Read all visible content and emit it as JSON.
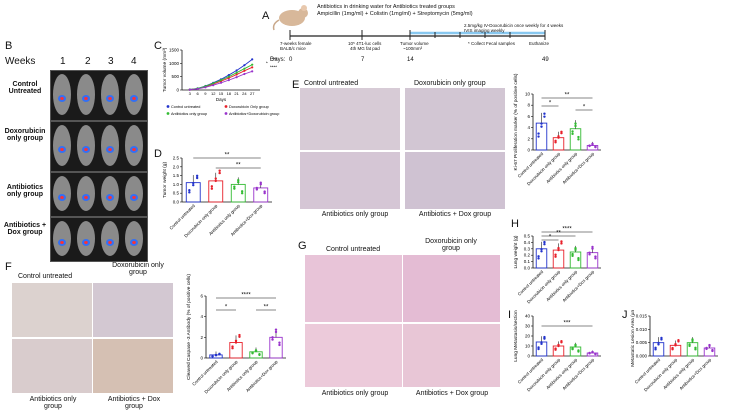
{
  "panels": {
    "A": "A",
    "B": "B",
    "C": "C",
    "D": "D",
    "E": "E",
    "F": "F",
    "G": "G",
    "H": "H",
    "I": "I",
    "J": "J"
  },
  "timeline": {
    "mouse_label_1": "7-weeks female",
    "mouse_label_2": "BALB/c mice",
    "abx_line1": "Antibiotics in drinking water for Antibiotics treated groups",
    "abx_line2": "Ampicillin (1mg/ml) + Colistin (1mg/ml) + Streptomycin (5mg/ml)",
    "cells_1": "10⁵ 4T1-luc cells",
    "cells_2": "4th MG fat pad",
    "tumor_1": "Tumor volume",
    "tumor_2": "~100mm³",
    "dox_1": "2.5mg/kg IV-Doxorubicin once weekly for 4 weeks",
    "dox_2": "IVIS imaging weekly",
    "fecal": "* Collect Fecal samples",
    "euth": "Euthanize",
    "days_label": "Days:",
    "days": [
      "0",
      "7",
      "14",
      "49"
    ]
  },
  "B": {
    "weeks_label": "Weeks",
    "weeks": [
      "1",
      "2",
      "3",
      "4"
    ],
    "rows": [
      "Control Untreated",
      "Doxorubicin only group",
      "Antibiotics only group",
      "Antibiotics + Dox group"
    ]
  },
  "colors": {
    "control": "#2233cc",
    "dox": "#e8202a",
    "abx": "#33bb33",
    "abxdox": "#9933cc"
  },
  "chart_data": [
    {
      "id": "C",
      "type": "line",
      "xlabel": "Days",
      "ylabel": "Tumor volume (mm³)",
      "x": [
        3,
        6,
        9,
        12,
        15,
        18,
        21,
        24,
        27
      ],
      "ylim": [
        0,
        1500
      ],
      "yticks": [
        "0",
        "500",
        "1000",
        "1500"
      ],
      "series": [
        {
          "name": "Control untreated",
          "values": [
            20,
            60,
            150,
            270,
            400,
            560,
            730,
            930,
            1150
          ]
        },
        {
          "name": "Doxorubicin Only group",
          "values": [
            15,
            50,
            120,
            220,
            330,
            450,
            580,
            720,
            850
          ]
        },
        {
          "name": "Antibiotics only group",
          "values": [
            15,
            55,
            140,
            250,
            370,
            500,
            650,
            800,
            950
          ]
        },
        {
          "name": "Antibiotics+Doxorubicin group",
          "values": [
            10,
            40,
            100,
            180,
            270,
            370,
            480,
            600,
            700
          ]
        }
      ],
      "sig": [
        "*",
        "****",
        "****"
      ]
    },
    {
      "id": "D",
      "type": "bar",
      "ylabel": "Tumor weight (g)",
      "ylim": [
        0,
        2.5
      ],
      "yticks": [
        "0.0",
        "0.5",
        "1.0",
        "1.5",
        "2.0",
        "2.5"
      ],
      "categories": [
        "Control untreated",
        "Doxorubicin only group",
        "Antibiotics only group",
        "Antibiotics+Dox group"
      ],
      "values": [
        1.1,
        1.2,
        1.0,
        0.8
      ],
      "sig": [
        "**",
        "**"
      ]
    },
    {
      "id": "E",
      "type": "bar",
      "ylabel": "Ki-67 Proliferation marker (% of positive cells)",
      "ylim": [
        0,
        10
      ],
      "yticks": [
        "0",
        "2",
        "4",
        "6",
        "8",
        "10"
      ],
      "categories": [
        "Control untreated",
        "Doxorubicin only group",
        "Antibiotics only group",
        "Antibiotics+Dox group"
      ],
      "values": [
        4.8,
        2.2,
        3.8,
        0.8
      ],
      "sig": [
        "*",
        "*",
        "**"
      ]
    },
    {
      "id": "F",
      "type": "bar",
      "ylabel": "Cleaved Caspase -3 Antibody (% of positive cells)",
      "ylim": [
        0,
        6
      ],
      "yticks": [
        "0",
        "2",
        "4",
        "6"
      ],
      "categories": [
        "Control untreated",
        "Doxorubicin only group",
        "Antibiotics only group",
        "Antibiotics+Dox group"
      ],
      "values": [
        0.3,
        1.5,
        0.6,
        2.0
      ],
      "sig": [
        "*",
        "****",
        "**"
      ]
    },
    {
      "id": "H",
      "type": "bar",
      "ylabel": "Lung weight (g)",
      "ylim": [
        0,
        0.5
      ],
      "yticks": [
        "0.0",
        "0.1",
        "0.2",
        "0.3",
        "0.4",
        "0.5"
      ],
      "categories": [
        "Control untreated",
        "Doxorubicin only group",
        "Antibiotics only group",
        "Antibiotics+Dox group"
      ],
      "values": [
        0.3,
        0.28,
        0.25,
        0.24
      ],
      "sig": [
        "*",
        "**",
        "****"
      ]
    },
    {
      "id": "I",
      "type": "bar",
      "ylabel": "Lung Metastasis/section",
      "ylim": [
        0,
        40
      ],
      "yticks": [
        "0",
        "10",
        "20",
        "30",
        "40"
      ],
      "categories": [
        "Control untreated",
        "Doxorubicin only group",
        "Antibiotics only group",
        "Antibiotics+Dox group"
      ],
      "values": [
        14,
        10,
        9,
        3
      ],
      "sig": [
        "***"
      ]
    },
    {
      "id": "J",
      "type": "bar",
      "ylabel": "Metastatic Lesion Area (µm²)",
      "ylim": [
        0,
        0.015
      ],
      "yticks": [
        "0.000",
        "0.005",
        "0.010",
        "0.015"
      ],
      "categories": [
        "Control untreated",
        "Doxorubicin only group",
        "Antibiotics only group",
        "Antibiotics+Dox group"
      ],
      "values": [
        0.005,
        0.004,
        0.005,
        0.003
      ],
      "sig": []
    }
  ],
  "histo": {
    "E": [
      "Control untreated",
      "Doxorubicin only group",
      "Antibiotics only group",
      "Antibiotics + Dox group"
    ],
    "F": [
      "Control untreated",
      "Doxorubicin only group",
      "Antibiotics only group",
      "Antibiotics + Dox group"
    ],
    "G": [
      "Control untreated",
      "Doxorubicin only group",
      "Antibiotics only group",
      "Antibiotics + Dox group"
    ]
  }
}
